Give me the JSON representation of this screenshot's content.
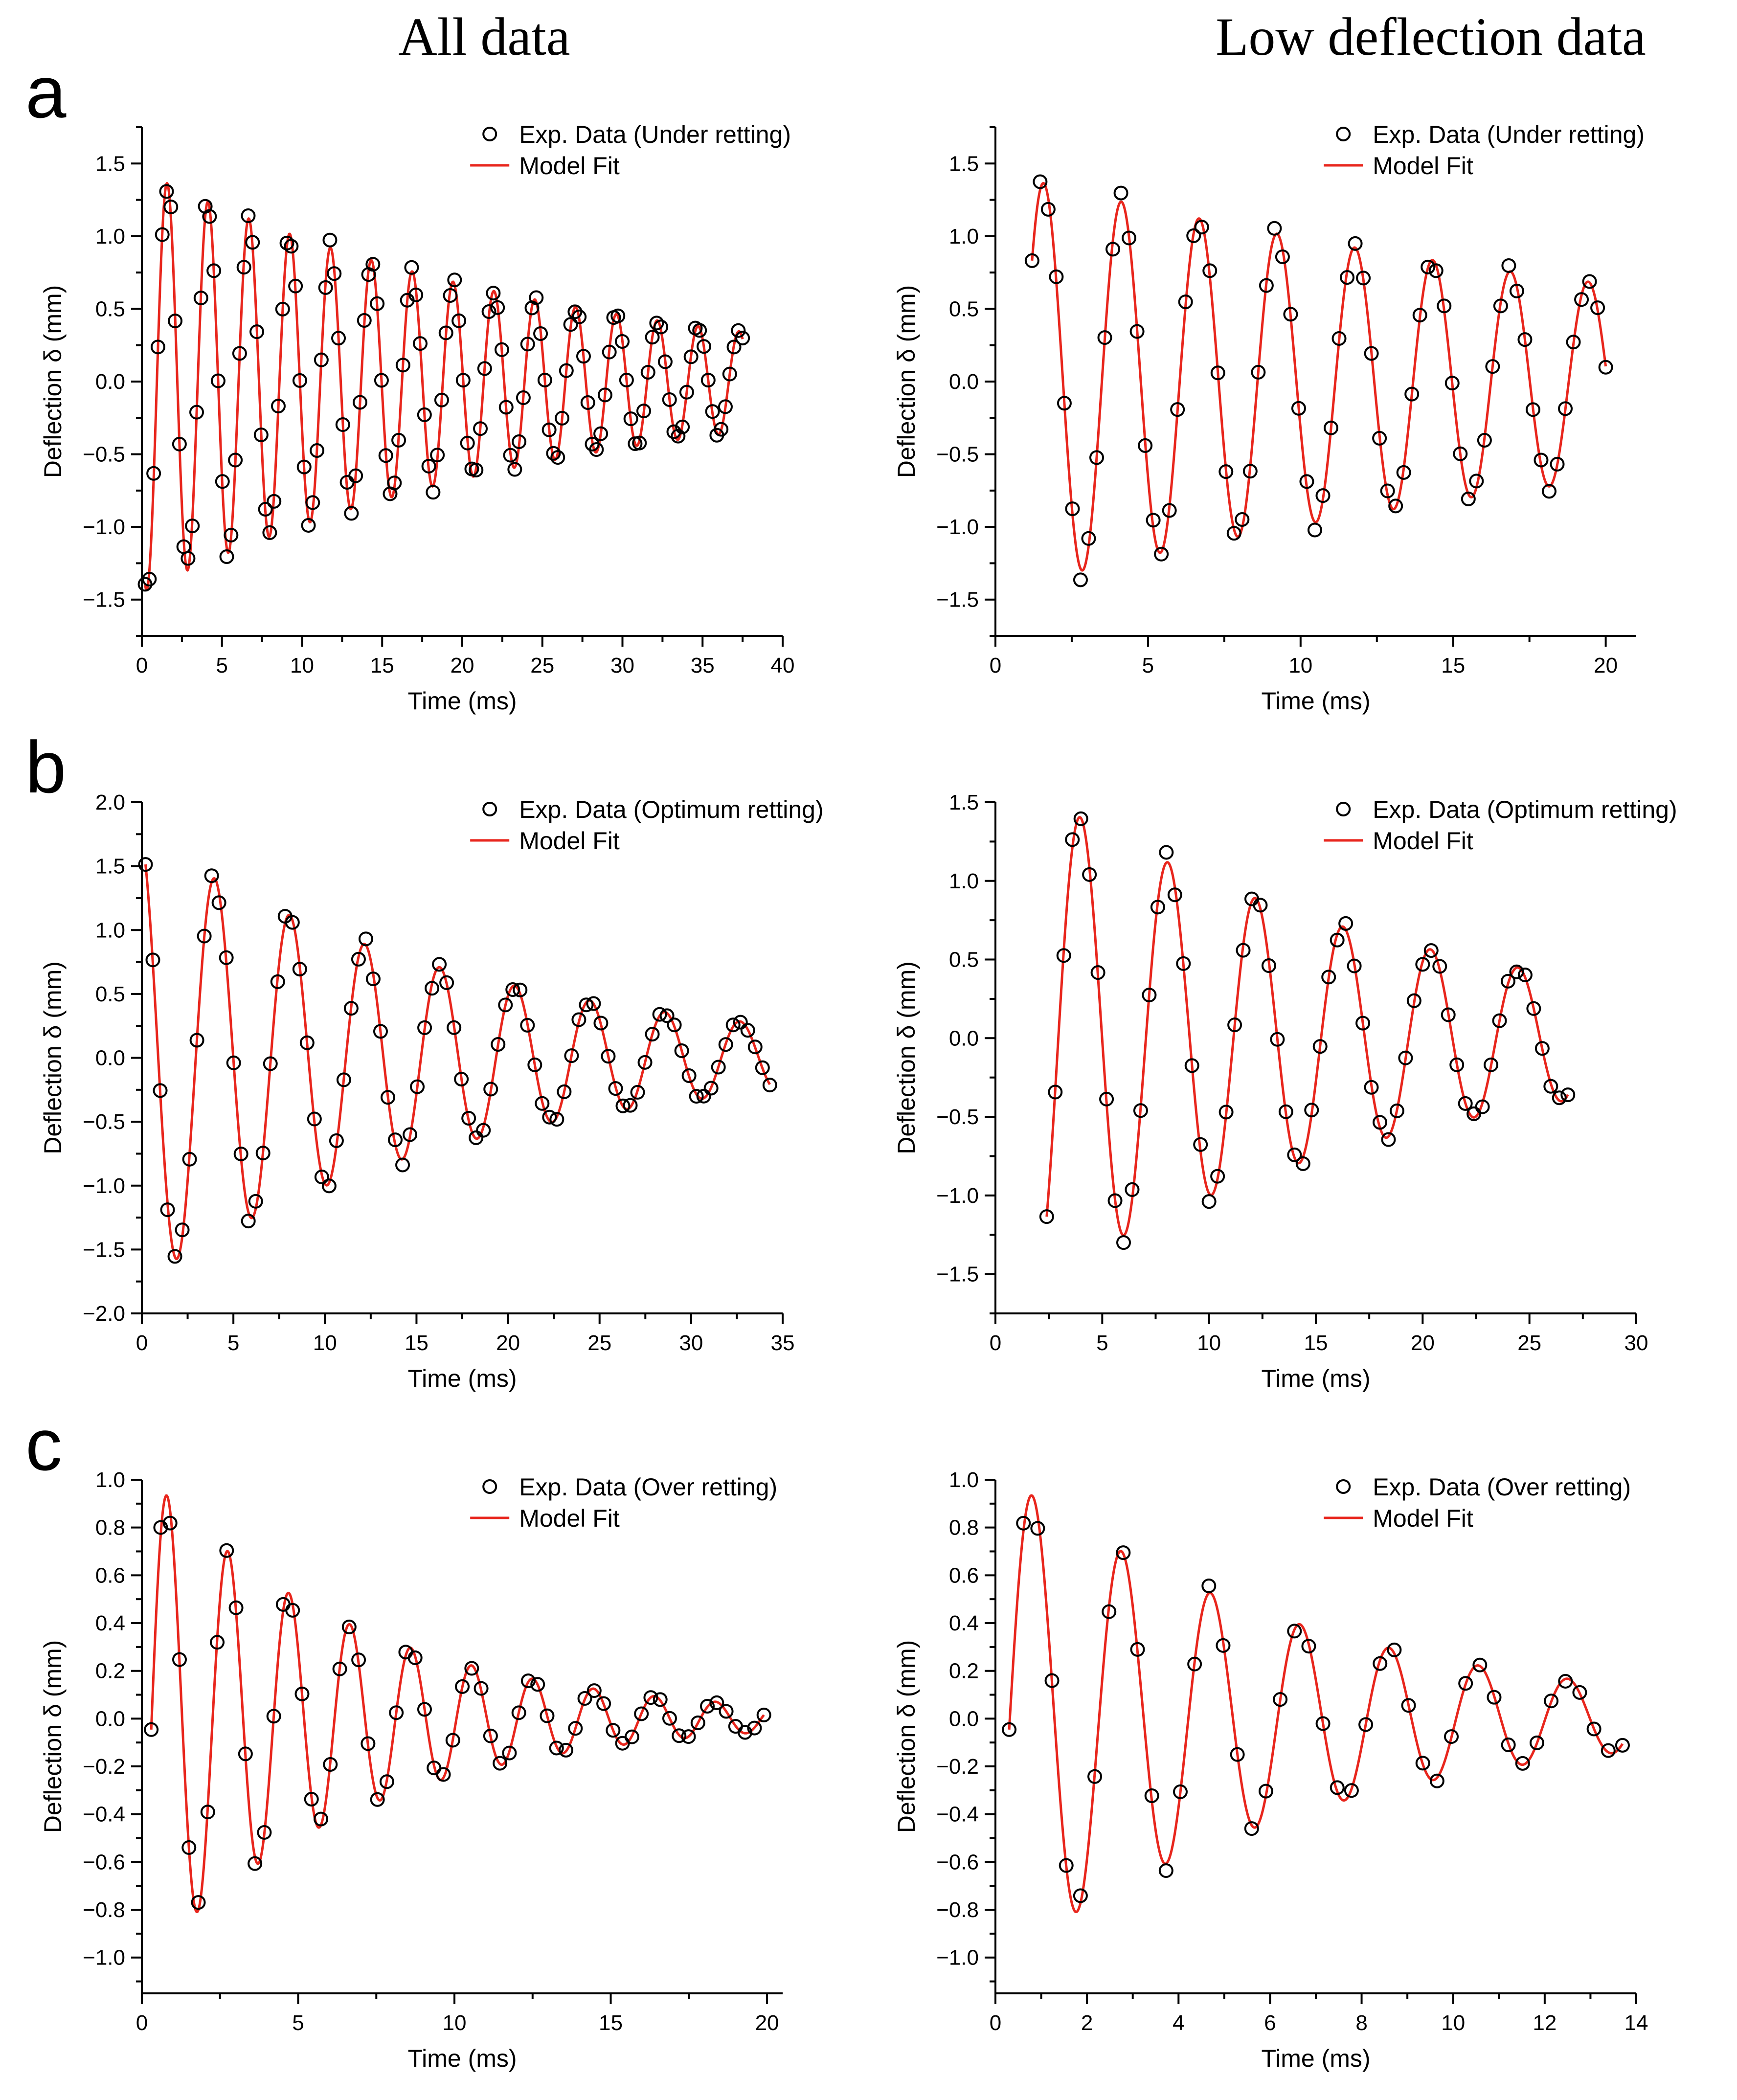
{
  "column_titles": {
    "left": "All data",
    "right": "Low deflection data"
  },
  "colors": {
    "data": "#000000",
    "fit": "#e8261d"
  },
  "chart_data": [
    {
      "id": "a-all",
      "panel_label": "a",
      "type": "scatter",
      "title": "",
      "xlabel": "Time (ms)",
      "ylabel": "Deflection δ (mm)",
      "xlim": [
        0,
        40
      ],
      "ylim": [
        -1.75,
        1.75
      ],
      "xticks": [
        0,
        5,
        10,
        15,
        20,
        25,
        30,
        35,
        40
      ],
      "xtick_labels": [
        "0",
        "5",
        "10",
        "15",
        "20",
        "25",
        "30",
        "35",
        "40"
      ],
      "yticks": [
        -1.5,
        -1.0,
        -0.5,
        0.0,
        0.5,
        1.0,
        1.5
      ],
      "ytick_labels": [
        "−1.5",
        "−1.0",
        "−0.5",
        "0.0",
        "0.5",
        "1.0",
        "1.5"
      ],
      "legend_position": "top-right",
      "series": [
        {
          "name": "Exp. Data (Under retting)",
          "kind": "scatter",
          "A": 1.45,
          "tau": 26,
          "period": 2.55,
          "phase": 2.4,
          "t0": 0.2,
          "t1": 37.5,
          "n": 140
        },
        {
          "name": "Model Fit",
          "kind": "line",
          "A": 1.45,
          "tau": 26,
          "period": 2.55,
          "phase": 2.4,
          "t0": 0.2,
          "t1": 37.5
        }
      ]
    },
    {
      "id": "a-low",
      "panel_label": "",
      "type": "scatter",
      "title": "",
      "xlabel": "Time (ms)",
      "ylabel": "Deflection δ (mm)",
      "xlim": [
        0,
        21
      ],
      "ylim": [
        -1.75,
        1.75
      ],
      "xticks": [
        0,
        5,
        10,
        15,
        20
      ],
      "xtick_labels": [
        "0",
        "5",
        "10",
        "15",
        "20"
      ],
      "yticks": [
        -1.5,
        -1.0,
        -0.5,
        0.0,
        0.5,
        1.0,
        1.5
      ],
      "ytick_labels": [
        "−1.5",
        "−1.0",
        "−0.5",
        "0.0",
        "0.5",
        "1.0",
        "1.5"
      ],
      "legend_position": "top-right",
      "series": [
        {
          "name": "Exp. Data (Under retting)",
          "kind": "scatter",
          "A": 1.45,
          "tau": 26,
          "period": 2.55,
          "phase": 2.4,
          "t0": 1.2,
          "t1": 20.0,
          "n": 72
        },
        {
          "name": "Model Fit",
          "kind": "line",
          "A": 1.45,
          "tau": 26,
          "period": 2.55,
          "phase": 2.4,
          "t0": 1.2,
          "t1": 20.0
        }
      ]
    },
    {
      "id": "b-all",
      "panel_label": "b",
      "type": "scatter",
      "title": "",
      "xlabel": "Time (ms)",
      "ylabel": "Deflection δ (mm)",
      "xlim": [
        0,
        35
      ],
      "ylim": [
        -2.0,
        2.0
      ],
      "xticks": [
        0,
        5,
        10,
        15,
        20,
        25,
        30,
        35
      ],
      "xtick_labels": [
        "0",
        "5",
        "10",
        "15",
        "20",
        "25",
        "30",
        "35"
      ],
      "yticks": [
        -2.0,
        -1.5,
        -1.0,
        -0.5,
        0.0,
        0.5,
        1.0,
        1.5,
        2.0
      ],
      "ytick_labels": [
        "−2.0",
        "−1.5",
        "−1.0",
        "−0.5",
        "0.0",
        "0.5",
        "1.0",
        "1.5",
        "2.0"
      ],
      "legend_position": "top-right",
      "series": [
        {
          "name": "Exp. Data (Optimum retting)",
          "kind": "scatter",
          "A": 1.75,
          "tau": 18,
          "period": 4.1,
          "phase": 0.2,
          "t0": 0.2,
          "t1": 34.3,
          "n": 86
        },
        {
          "name": "Model Fit",
          "kind": "line",
          "A": 1.75,
          "tau": 18,
          "period": 4.1,
          "phase": 0.2,
          "t0": 0.2,
          "t1": 34.3
        }
      ]
    },
    {
      "id": "b-low",
      "panel_label": "",
      "type": "scatter",
      "title": "",
      "xlabel": "Time (ms)",
      "ylabel": "Deflection δ (mm)",
      "xlim": [
        0,
        30
      ],
      "ylim": [
        -1.75,
        1.5
      ],
      "xticks": [
        0,
        5,
        10,
        15,
        20,
        25,
        30
      ],
      "xtick_labels": [
        "0",
        "5",
        "10",
        "15",
        "20",
        "25",
        "30"
      ],
      "yticks": [
        -1.5,
        -1.0,
        -0.5,
        0.0,
        0.5,
        1.0,
        1.5
      ],
      "ytick_labels": [
        "−1.5",
        "−1.0",
        "−0.5",
        "0.0",
        "0.5",
        "1.0",
        "1.5"
      ],
      "legend_position": "top-right",
      "series": [
        {
          "name": "Exp. Data (Optimum retting)",
          "kind": "scatter",
          "A": 1.75,
          "tau": 18,
          "period": 4.1,
          "phase": 0.2,
          "t0": 2.4,
          "t1": 26.8,
          "n": 62
        },
        {
          "name": "Model Fit",
          "kind": "line",
          "A": 1.75,
          "tau": 18,
          "period": 4.1,
          "phase": 0.2,
          "t0": 2.4,
          "t1": 26.8
        }
      ]
    },
    {
      "id": "c-all",
      "panel_label": "c",
      "type": "scatter",
      "title": "",
      "xlabel": "Time (ms)",
      "ylabel": "Deflection δ (mm)",
      "xlim": [
        0,
        20.5
      ],
      "ylim": [
        -1.15,
        1.0
      ],
      "xticks": [
        0,
        5,
        10,
        15,
        20
      ],
      "xtick_labels": [
        "0",
        "5",
        "10",
        "15",
        "20"
      ],
      "yticks": [
        -1.0,
        -0.8,
        -0.6,
        -0.4,
        -0.2,
        0.0,
        0.2,
        0.4,
        0.6,
        0.8,
        1.0
      ],
      "ytick_labels": [
        "−1.0",
        "−0.8",
        "−0.6",
        "−0.4",
        "−0.2",
        "0.0",
        "0.2",
        "0.4",
        "0.6",
        "0.8",
        "1.0"
      ],
      "legend_position": "top-right",
      "series": [
        {
          "name": "Exp. Data (Over retting)",
          "kind": "scatter",
          "A": 1.05,
          "tau": 6.8,
          "period": 1.95,
          "phase": 3.7,
          "t0": 0.3,
          "t1": 19.9,
          "n": 66
        },
        {
          "name": "Model Fit",
          "kind": "line",
          "A": 1.05,
          "tau": 6.8,
          "period": 1.95,
          "phase": 3.7,
          "t0": 0.3,
          "t1": 19.9
        }
      ]
    },
    {
      "id": "c-low",
      "panel_label": "",
      "type": "scatter",
      "title": "",
      "xlabel": "Time (ms)",
      "ylabel": "Deflection δ (mm)",
      "xlim": [
        0,
        14
      ],
      "ylim": [
        -1.15,
        1.0
      ],
      "xticks": [
        0,
        2,
        4,
        6,
        8,
        10,
        12,
        14
      ],
      "xtick_labels": [
        "0",
        "2",
        "4",
        "6",
        "8",
        "10",
        "12",
        "14"
      ],
      "yticks": [
        -1.0,
        -0.8,
        -0.6,
        -0.4,
        -0.2,
        0.0,
        0.2,
        0.4,
        0.6,
        0.8,
        1.0
      ],
      "ytick_labels": [
        "−1.0",
        "−0.8",
        "−0.6",
        "−0.4",
        "−0.2",
        "0.0",
        "0.2",
        "0.4",
        "0.6",
        "0.8",
        "1.0"
      ],
      "legend_position": "top-right",
      "series": [
        {
          "name": "Exp. Data (Over retting)",
          "kind": "scatter",
          "A": 1.05,
          "tau": 6.8,
          "period": 1.95,
          "phase": 3.7,
          "t0": 0.3,
          "t1": 13.7,
          "n": 44
        },
        {
          "name": "Model Fit",
          "kind": "line",
          "A": 1.05,
          "tau": 6.8,
          "period": 1.95,
          "phase": 3.7,
          "t0": 0.3,
          "t1": 13.7
        }
      ]
    }
  ]
}
